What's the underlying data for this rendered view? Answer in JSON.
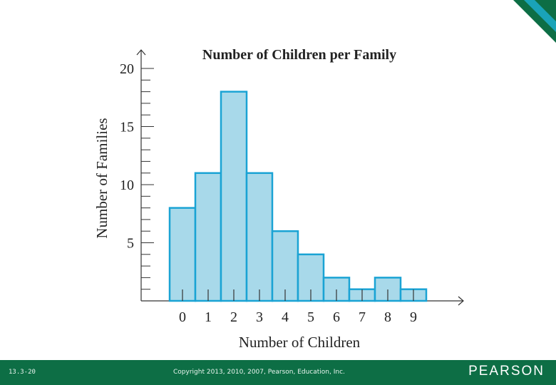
{
  "chart_data": {
    "type": "bar",
    "title": "Number of Children per Family",
    "xlabel": "Number of Children",
    "ylabel": "Number of Families",
    "categories": [
      "0",
      "1",
      "2",
      "3",
      "4",
      "5",
      "6",
      "7",
      "8",
      "9"
    ],
    "values": [
      8,
      11,
      18,
      11,
      6,
      4,
      2,
      1,
      2,
      1
    ],
    "yticks": [
      5,
      10,
      15,
      20
    ],
    "ylim": [
      0,
      21
    ],
    "grid": false,
    "bar_fill": "#a8d9ea",
    "bar_stroke": "#1aa3d4"
  },
  "footer": {
    "slide_number": "13.3-20",
    "copyright": "Copyright 2013, 2010, 2007, Pearson, Education, Inc.",
    "brand": "PEARSON",
    "color": "#0d6e45"
  }
}
